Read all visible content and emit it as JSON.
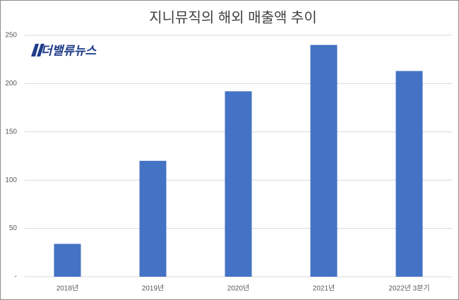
{
  "chart_data": {
    "type": "bar",
    "title": "지니뮤직의 해외 매출액 추이",
    "logo": "더밸류뉴스",
    "categories": [
      "2018년",
      "2019년",
      "2020년",
      "2021년",
      "2022년 3분기"
    ],
    "values": [
      34,
      120,
      192,
      240,
      213
    ],
    "color": "#4472c4",
    "ylim": [
      0,
      250
    ],
    "yticks": [
      {
        "value": 0,
        "label": "-"
      },
      50,
      100,
      150,
      200,
      250
    ],
    "grid": true
  }
}
